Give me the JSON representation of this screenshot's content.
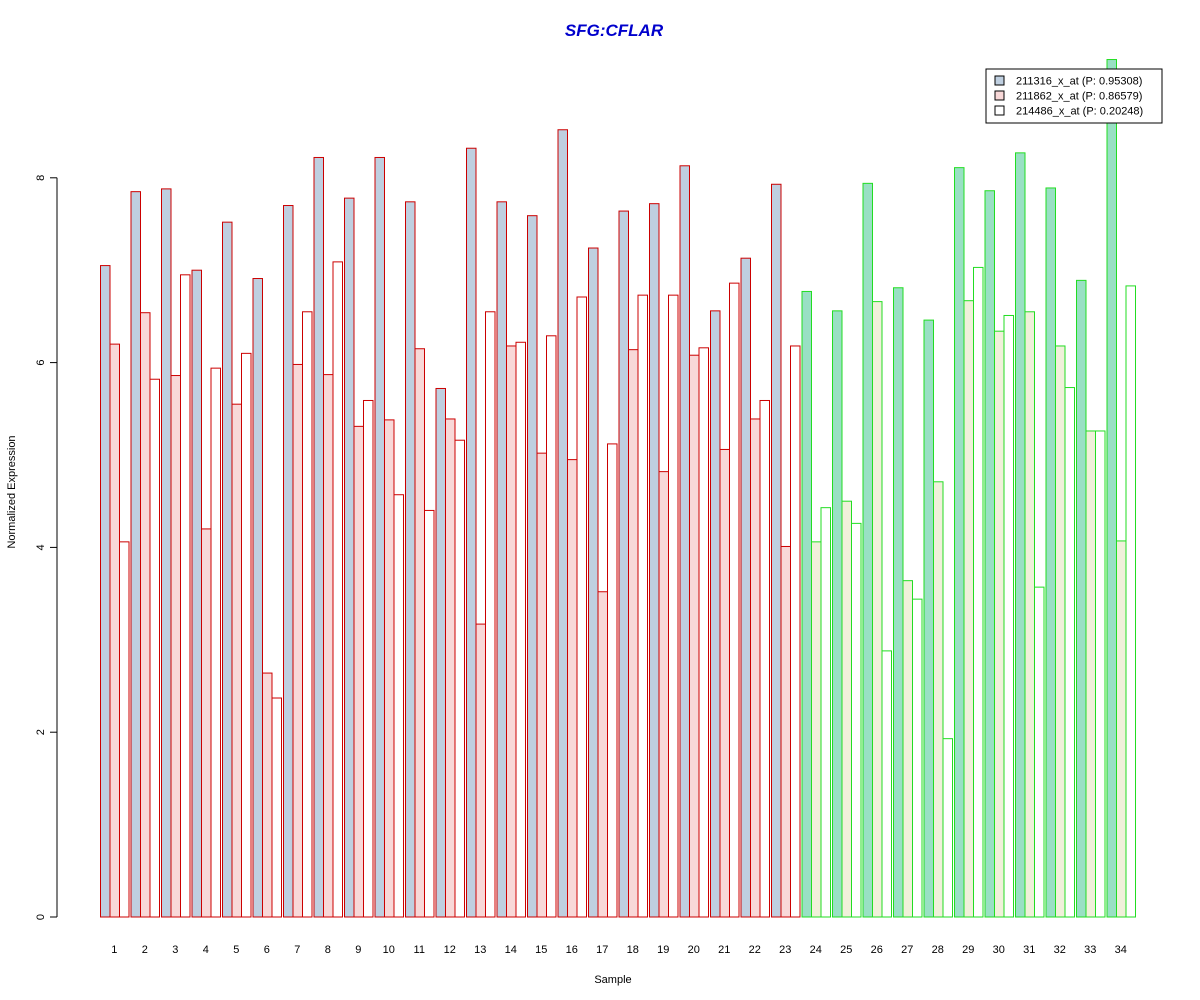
{
  "chart_data": {
    "type": "bar",
    "title": "SFG:CFLAR",
    "title_color": "#0000CC",
    "xlabel": "Sample",
    "ylabel": "Normalized Expression",
    "ylim": [
      0,
      9.3
    ],
    "yticks": [
      "0",
      "2",
      "4",
      "6",
      "8"
    ],
    "grid": false,
    "legend_position": "top-right",
    "categories": [
      "1",
      "2",
      "3",
      "4",
      "5",
      "6",
      "7",
      "8",
      "9",
      "10",
      "11",
      "12",
      "13",
      "14",
      "15",
      "16",
      "17",
      "18",
      "19",
      "20",
      "21",
      "22",
      "23",
      "24",
      "25",
      "26",
      "27",
      "28",
      "29",
      "30",
      "31",
      "32",
      "33",
      "34"
    ],
    "group_split_after": 23,
    "group_colors": {
      "group1": {
        "border": "#CC0000",
        "fills": [
          "#BFCFE0",
          "#F8D8D8",
          "#FFFFFF"
        ]
      },
      "group2": {
        "border": "#22DD22",
        "fills": [
          "#99E0C4",
          "#F0F0DA",
          "#FFFFFF"
        ]
      }
    },
    "series": [
      {
        "name": "211316_x_at (P: 0.95308)",
        "legend_fill": "#BFCFE0",
        "values": [
          7.05,
          7.85,
          7.88,
          7.0,
          7.52,
          6.91,
          7.7,
          8.22,
          7.78,
          8.22,
          7.74,
          5.72,
          8.32,
          7.74,
          7.59,
          8.52,
          7.24,
          7.64,
          7.72,
          8.13,
          6.56,
          7.13,
          7.93,
          6.77,
          6.56,
          7.94,
          6.81,
          6.46,
          8.11,
          7.86,
          8.27,
          7.89,
          6.89,
          9.28
        ]
      },
      {
        "name": "211862_x_at (P: 0.86579)",
        "legend_fill": "#F8D8D8",
        "values": [
          6.2,
          6.54,
          5.86,
          4.2,
          5.55,
          2.64,
          5.98,
          5.87,
          5.31,
          5.38,
          6.15,
          5.39,
          3.17,
          6.18,
          5.02,
          4.95,
          3.52,
          6.14,
          4.82,
          6.08,
          5.06,
          5.39,
          4.01,
          4.06,
          4.5,
          6.66,
          3.64,
          4.71,
          6.67,
          6.34,
          6.55,
          6.18,
          5.26,
          4.07
        ]
      },
      {
        "name": "214486_x_at (P: 0.20248)",
        "legend_fill": "#FFFFFF",
        "values": [
          4.06,
          5.82,
          6.95,
          5.94,
          6.1,
          2.37,
          6.55,
          7.09,
          5.59,
          4.57,
          4.4,
          5.16,
          6.55,
          6.22,
          6.29,
          6.71,
          5.12,
          6.73,
          6.73,
          6.16,
          6.86,
          5.59,
          6.18,
          4.43,
          4.26,
          2.88,
          3.44,
          1.93,
          7.03,
          6.51,
          3.57,
          5.73,
          5.26,
          6.83
        ]
      }
    ]
  }
}
